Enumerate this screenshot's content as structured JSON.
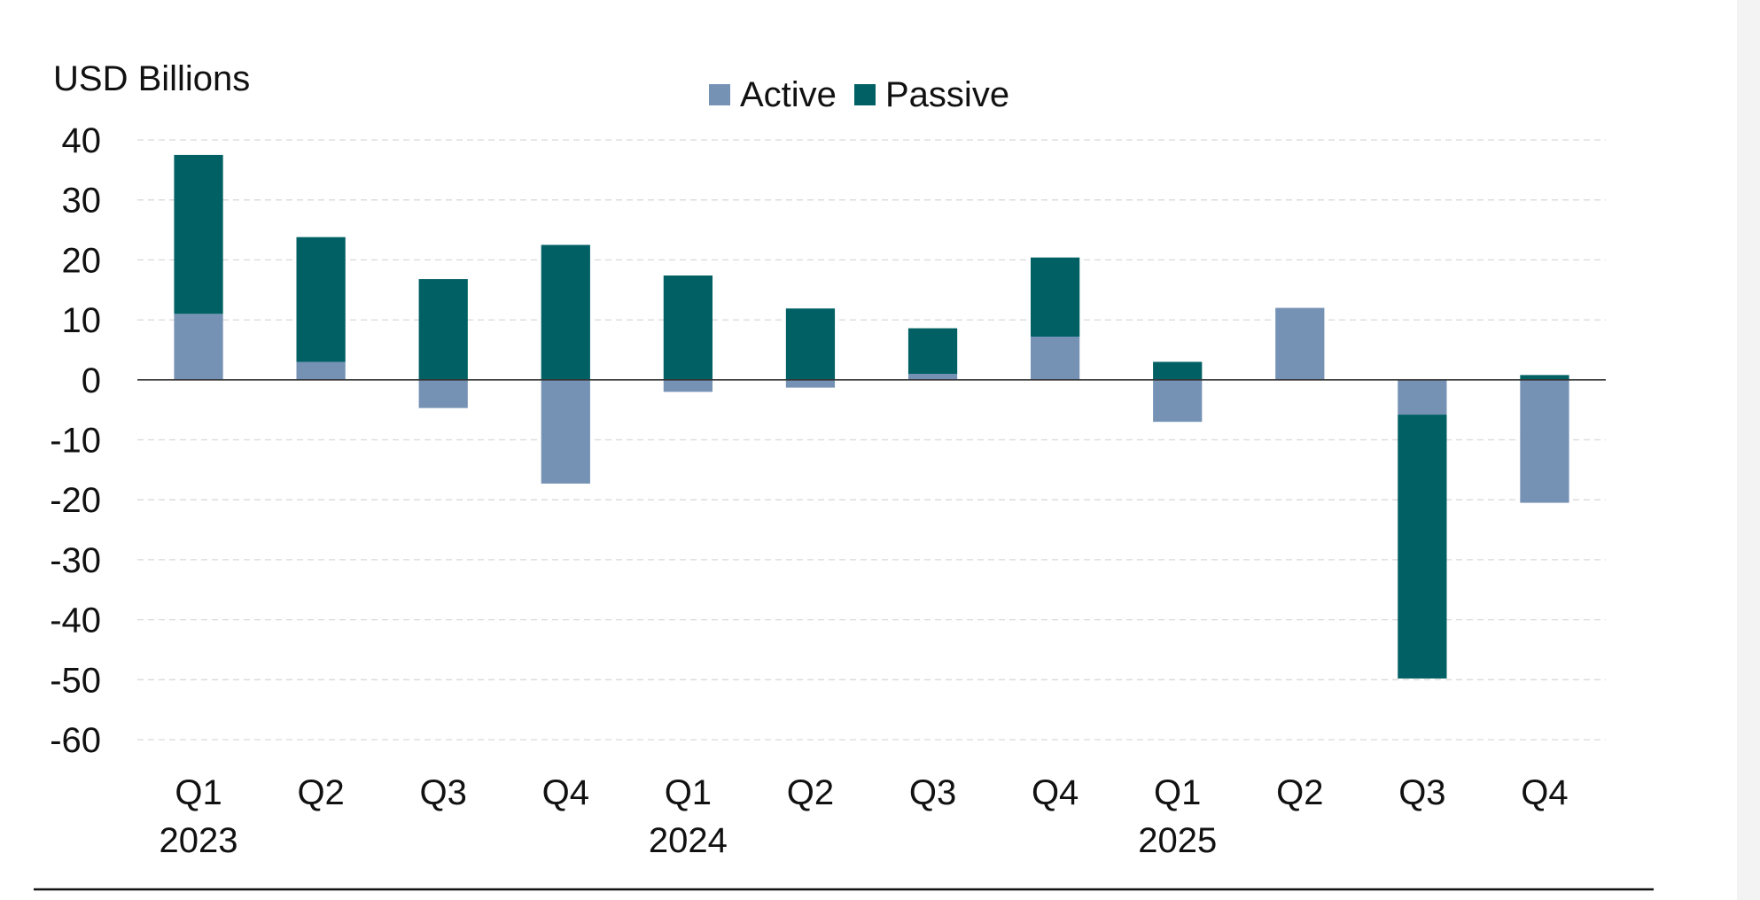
{
  "chart_data": {
    "type": "bar",
    "stacked": true,
    "ylabel": "USD Billions",
    "ylim": [
      -60,
      40
    ],
    "yticks": [
      40,
      30,
      20,
      10,
      0,
      -10,
      -20,
      -30,
      -40,
      -50,
      -60
    ],
    "grid": true,
    "legend_position": "top-center",
    "categories": [
      "Q1",
      "Q2",
      "Q3",
      "Q4",
      "Q1",
      "Q2",
      "Q3",
      "Q4",
      "Q1",
      "Q2",
      "Q3",
      "Q4"
    ],
    "year_labels": [
      "2023",
      "",
      "",
      "",
      "2024",
      "",
      "",
      "",
      "2025",
      "",
      "",
      ""
    ],
    "series": [
      {
        "name": "Active",
        "color": "#7592b5",
        "values": [
          11,
          3,
          -4.7,
          -17.3,
          -2,
          -1.3,
          1,
          7.2,
          -7,
          12,
          -5.8,
          -20.5
        ]
      },
      {
        "name": "Passive",
        "color": "#006064",
        "values": [
          26.5,
          20.8,
          16.8,
          22.5,
          17.4,
          11.9,
          7.6,
          13.2,
          3,
          0,
          -44,
          0.8
        ]
      }
    ]
  }
}
